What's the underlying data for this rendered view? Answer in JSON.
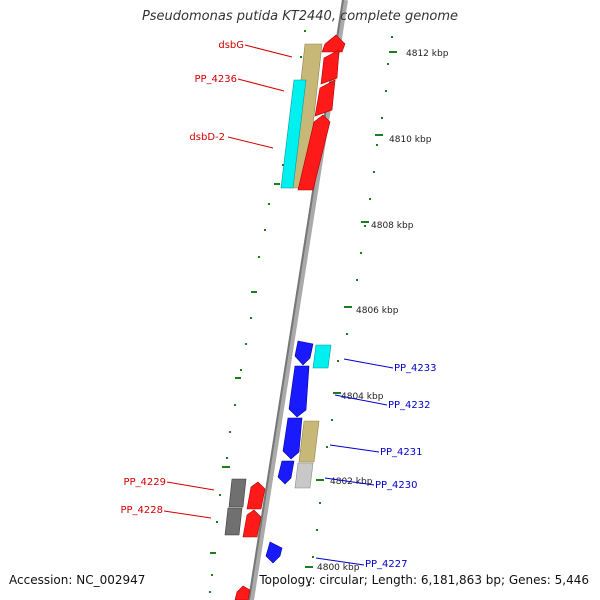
{
  "title": "Pseudomonas putida KT2440, complete genome",
  "footer": {
    "accession": "Accession: NC_002947",
    "topology": "Topology: circular; Length: 6,181,863 bp; Genes: 5,446"
  },
  "colors": {
    "backbone": "#8c8c8c",
    "tick": "#1a7f1a",
    "forward_gene": "#ff1a1a",
    "reverse_gene": "#1a1aff",
    "cyan": "#00f0f0",
    "tan": "#c8b878",
    "dark_gray": "#707070",
    "light_gray": "#c8c8c8",
    "red_label": "#d40000",
    "blue_label": "#0000cc",
    "ruler_text": "#222222"
  },
  "ruler_labels": [
    "4812 kbp",
    "4810 kbp",
    "4808 kbp",
    "4806 kbp",
    "4804 kbp",
    "4802 kbp",
    "4800 kbp"
  ],
  "gene_labels": {
    "forward": [
      "dsbG",
      "PP_4236",
      "dsbD-2",
      "PP_4229",
      "PP_4228"
    ],
    "reverse": [
      "PP_4233",
      "PP_4232",
      "PP_4231",
      "PP_4230",
      "PP_4227"
    ]
  }
}
